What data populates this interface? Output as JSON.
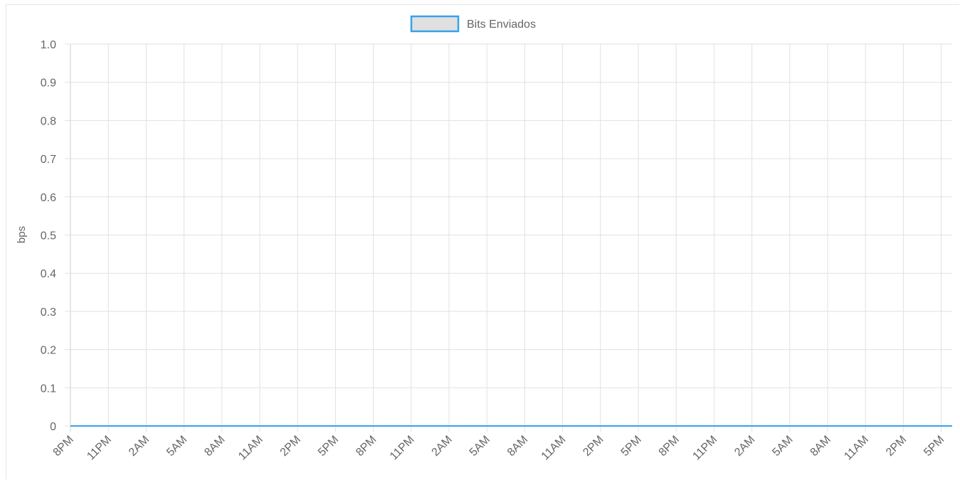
{
  "chart_data": {
    "type": "line",
    "title": "",
    "xlabel": "",
    "ylabel": "bps",
    "ylim": [
      0,
      1.0
    ],
    "y_ticks": [
      "0",
      "0.1",
      "0.2",
      "0.3",
      "0.4",
      "0.5",
      "0.6",
      "0.7",
      "0.8",
      "0.9",
      "1.0"
    ],
    "x": [
      "8PM",
      "11PM",
      "2AM",
      "5AM",
      "8AM",
      "11AM",
      "2PM",
      "5PM",
      "8PM",
      "11PM",
      "2AM",
      "5AM",
      "8AM",
      "11AM",
      "2PM",
      "5PM",
      "8PM",
      "11PM",
      "2AM",
      "5AM",
      "8AM",
      "11AM",
      "2PM",
      "5PM"
    ],
    "series": [
      {
        "name": "Bits Enviados",
        "color": "#36a2eb",
        "fill": "#e0e0e0",
        "values": [
          0,
          0,
          0,
          0,
          0,
          0,
          0,
          0,
          0,
          0,
          0,
          0,
          0,
          0,
          0,
          0,
          0,
          0,
          0,
          0,
          0,
          0,
          0,
          0
        ]
      }
    ],
    "grid": true,
    "legend": "top-center"
  }
}
